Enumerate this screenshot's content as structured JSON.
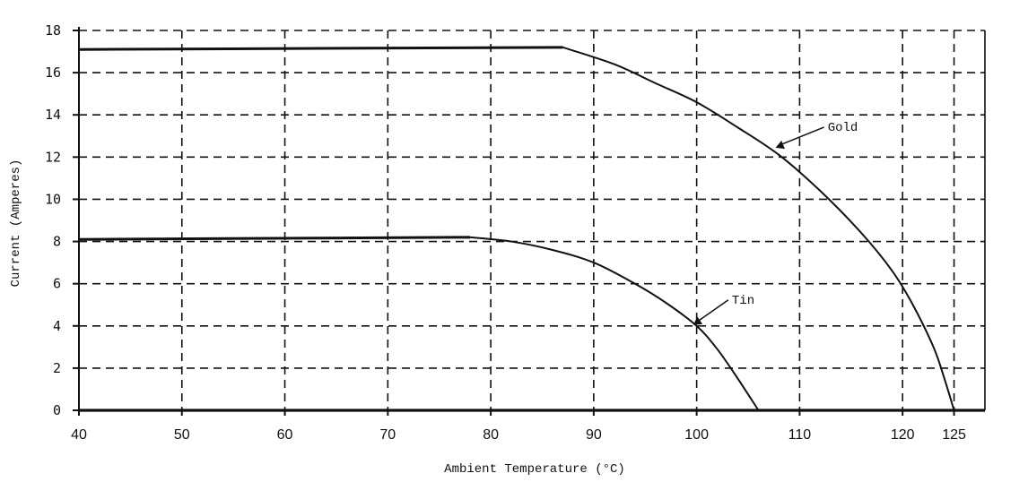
{
  "chart_data": {
    "type": "line",
    "title": "",
    "xlabel": "Ambient Temperature (°C)",
    "ylabel": "Current (Amperes)",
    "xlim": [
      40,
      128
    ],
    "ylim": [
      0,
      18
    ],
    "x_ticks": [
      40,
      50,
      60,
      70,
      80,
      90,
      100,
      110,
      120,
      125
    ],
    "x_tick_labels": [
      "40",
      "50",
      "60",
      "70",
      "80",
      "90",
      "100",
      "110",
      "120",
      "125"
    ],
    "y_ticks": [
      0,
      2,
      4,
      6,
      8,
      10,
      12,
      14,
      16,
      18
    ],
    "y_tick_labels": [
      "0",
      "2",
      "4",
      "6",
      "8",
      "10",
      "12",
      "14",
      "16",
      "18"
    ],
    "grid": true,
    "grid_style": "dashed",
    "legend": "none",
    "series": [
      {
        "name": "Gold",
        "x": [
          40,
          87,
          92,
          96,
          100,
          104,
          108,
          112,
          116,
          119,
          121,
          123,
          124,
          125
        ],
        "y": [
          17.1,
          17.2,
          16.4,
          15.5,
          14.6,
          13.4,
          12.1,
          10.4,
          8.4,
          6.6,
          5.0,
          3.0,
          1.6,
          0
        ]
      },
      {
        "name": "Tin",
        "x": [
          40,
          78,
          82,
          86,
          90,
          94,
          97,
          100,
          102,
          104,
          106
        ],
        "y": [
          8.1,
          8.2,
          8.0,
          7.6,
          7.0,
          6.0,
          5.1,
          4.0,
          2.9,
          1.5,
          0
        ]
      }
    ],
    "annotations": [
      {
        "text": "Gold",
        "x": 107.5,
        "y": 12.4
      },
      {
        "text": "Tin",
        "x": 99.5,
        "y": 4.0
      }
    ]
  }
}
